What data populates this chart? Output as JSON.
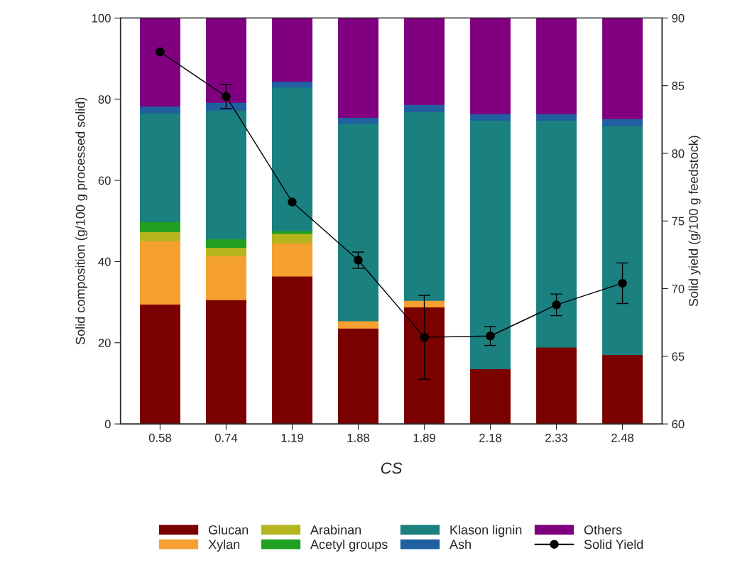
{
  "chart_data": {
    "type": "bar",
    "stacked": true,
    "xlabel": "CS",
    "ylabel": "Solid composition (g/100 g processed solid)",
    "y2label": "Solid yield (g/100 g feedstock)",
    "categories": [
      "0.58",
      "0.74",
      "1.19",
      "1.88",
      "1.89",
      "2.18",
      "2.33",
      "2.48"
    ],
    "series": [
      {
        "name": "Glucan",
        "color": "#7b0000",
        "values": [
          29.5,
          30.6,
          36.4,
          23.6,
          28.8,
          13.6,
          18.9,
          17.1
        ]
      },
      {
        "name": "Xylan",
        "color": "#f5a030",
        "values": [
          15.6,
          10.8,
          8.2,
          1.8,
          1.6,
          null,
          null,
          null
        ]
      },
      {
        "name": "Arabinan",
        "color": "#b5b520",
        "values": [
          2.3,
          2.1,
          2.3,
          null,
          null,
          null,
          null,
          null
        ]
      },
      {
        "name": "Acetyl groups",
        "color": "#20a020",
        "values": [
          2.4,
          2.1,
          0.7,
          null,
          null,
          null,
          null,
          null
        ]
      },
      {
        "name": "Klason lignin",
        "color": "#1a8080",
        "values": [
          26.8,
          31.7,
          35.4,
          48.7,
          46.5,
          61.2,
          55.9,
          56.3
        ]
      },
      {
        "name": "Ash",
        "color": "#2060a0",
        "values": [
          1.7,
          1.9,
          1.4,
          1.4,
          1.8,
          1.6,
          1.6,
          1.8
        ]
      },
      {
        "name": "Others",
        "color": "#800080",
        "values": [
          21.7,
          20.8,
          15.6,
          24.5,
          21.3,
          23.6,
          23.6,
          24.8
        ]
      },
      {
        "name": "Solid Yield",
        "type": "line",
        "axis": "y2",
        "color": "#000000",
        "marker": "circle",
        "values": [
          87.5,
          84.2,
          76.4,
          72.1,
          66.4,
          66.5,
          68.8,
          70.4
        ],
        "errors": [
          null,
          0.9,
          null,
          0.6,
          3.1,
          0.7,
          0.8,
          1.5
        ]
      }
    ],
    "ylim": [
      0,
      100
    ],
    "yticks": [
      0,
      20,
      40,
      60,
      80,
      100
    ],
    "y2lim": [
      60,
      90
    ],
    "y2ticks": [
      60,
      65,
      70,
      75,
      80,
      85,
      90
    ],
    "legend": "bottom",
    "grid": false
  }
}
